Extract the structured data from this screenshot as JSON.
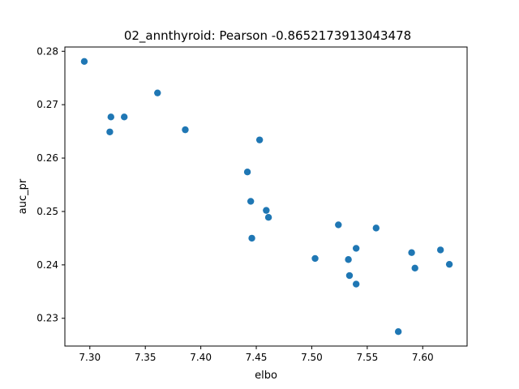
{
  "chart_data": {
    "type": "scatter",
    "title": "02_annthyroid: Pearson -0.8652173913043478",
    "xlabel": "elbo",
    "ylabel": "auc_pr",
    "xlim": [
      7.2775,
      7.64
    ],
    "ylim": [
      0.2248,
      0.2808
    ],
    "xticks": [
      7.3,
      7.35,
      7.4,
      7.45,
      7.5,
      7.55,
      7.6
    ],
    "xtick_labels": [
      "7.30",
      "7.35",
      "7.40",
      "7.45",
      "7.50",
      "7.55",
      "7.60"
    ],
    "yticks": [
      0.23,
      0.24,
      0.25,
      0.26,
      0.27,
      0.28
    ],
    "ytick_labels": [
      "0.23",
      "0.24",
      "0.25",
      "0.26",
      "0.27",
      "0.28"
    ],
    "grid": false,
    "legend": "none",
    "marker_color": "#1f77b4",
    "points": [
      {
        "x": 7.295,
        "y": 0.2781
      },
      {
        "x": 7.319,
        "y": 0.2677
      },
      {
        "x": 7.331,
        "y": 0.2677
      },
      {
        "x": 7.318,
        "y": 0.2649
      },
      {
        "x": 7.361,
        "y": 0.2722
      },
      {
        "x": 7.386,
        "y": 0.2653
      },
      {
        "x": 7.442,
        "y": 0.2574
      },
      {
        "x": 7.453,
        "y": 0.2634
      },
      {
        "x": 7.445,
        "y": 0.2519
      },
      {
        "x": 7.459,
        "y": 0.2502
      },
      {
        "x": 7.461,
        "y": 0.2489
      },
      {
        "x": 7.446,
        "y": 0.245
      },
      {
        "x": 7.503,
        "y": 0.2412
      },
      {
        "x": 7.524,
        "y": 0.2475
      },
      {
        "x": 7.533,
        "y": 0.241
      },
      {
        "x": 7.534,
        "y": 0.238
      },
      {
        "x": 7.54,
        "y": 0.2431
      },
      {
        "x": 7.54,
        "y": 0.2364
      },
      {
        "x": 7.558,
        "y": 0.2469
      },
      {
        "x": 7.578,
        "y": 0.2275
      },
      {
        "x": 7.59,
        "y": 0.2423
      },
      {
        "x": 7.593,
        "y": 0.2394
      },
      {
        "x": 7.616,
        "y": 0.2428
      },
      {
        "x": 7.624,
        "y": 0.2401
      }
    ]
  }
}
